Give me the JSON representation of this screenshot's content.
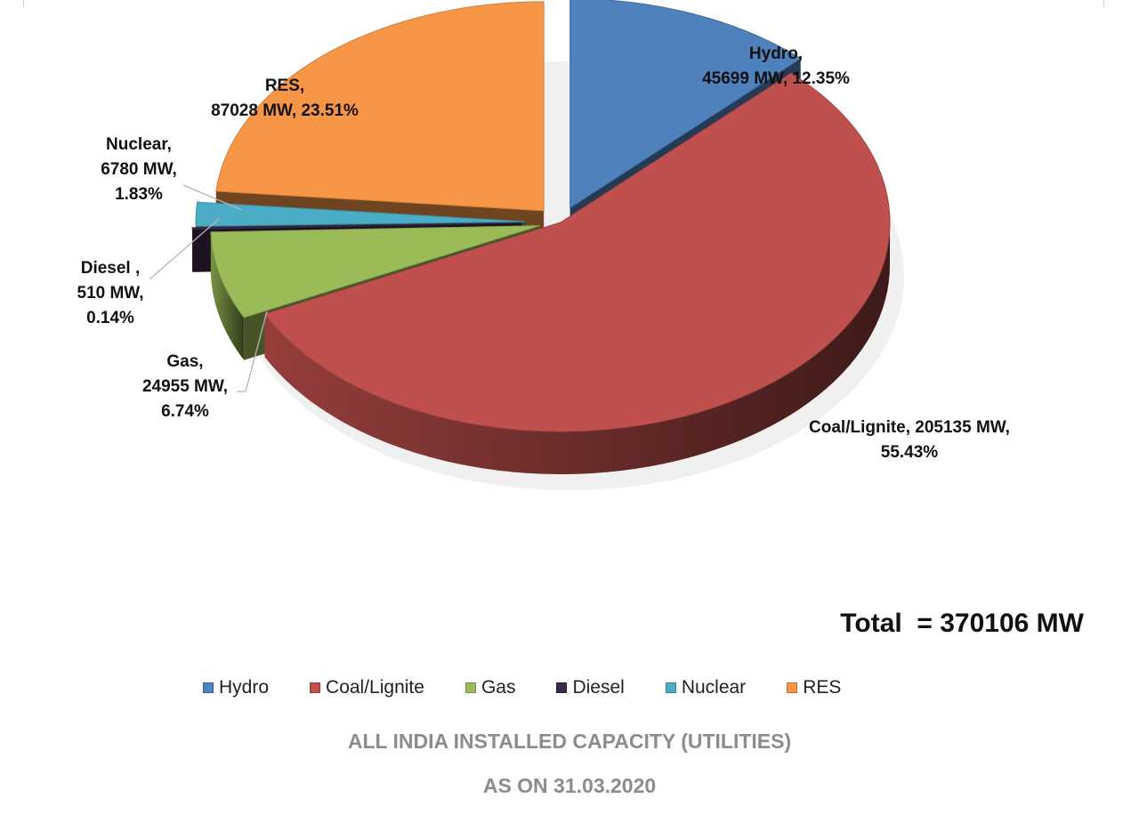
{
  "total_text": "Total  = 370106 MW",
  "colors": {
    "Hydro": "#4f81bd",
    "Coal/Lignite": "#c0504d",
    "Gas": "#9bbb59",
    "Diesel": "#3b2a4a",
    "Nuclear": "#4bacc6",
    "RES": "#f79646"
  },
  "chart_data": {
    "type": "pie",
    "title": "ALL INDIA INSTALLED CAPACITY (UTILITIES)",
    "subtitle": "AS ON 31.03.2020",
    "unit": "MW",
    "total": 370106,
    "legend_position": "bottom",
    "slices": [
      {
        "name": "Hydro",
        "value": 45699,
        "percent": 12.35,
        "label_lines": [
          "Hydro,",
          "45699 MW, 12.35%"
        ]
      },
      {
        "name": "Coal/Lignite",
        "value": 205135,
        "percent": 55.43,
        "label_lines": [
          "Coal/Lignite, 205135 MW,",
          "55.43%"
        ]
      },
      {
        "name": "Gas",
        "value": 24955,
        "percent": 6.74,
        "label_lines": [
          "Gas,",
          "24955 MW,",
          "6.74%"
        ]
      },
      {
        "name": "Diesel",
        "value": 510,
        "percent": 0.14,
        "label_lines": [
          "Diesel ,",
          "510 MW,",
          "0.14%"
        ]
      },
      {
        "name": "Nuclear",
        "value": 6780,
        "percent": 1.83,
        "label_lines": [
          "Nuclear,",
          "6780 MW,",
          "1.83%"
        ]
      },
      {
        "name": "RES",
        "value": 87028,
        "percent": 23.51,
        "label_lines": [
          "RES,",
          "87028 MW, 23.51%"
        ]
      }
    ],
    "legend": [
      "Hydro",
      "Coal/Lignite",
      "Gas",
      "Diesel",
      "Nuclear",
      "RES"
    ]
  }
}
